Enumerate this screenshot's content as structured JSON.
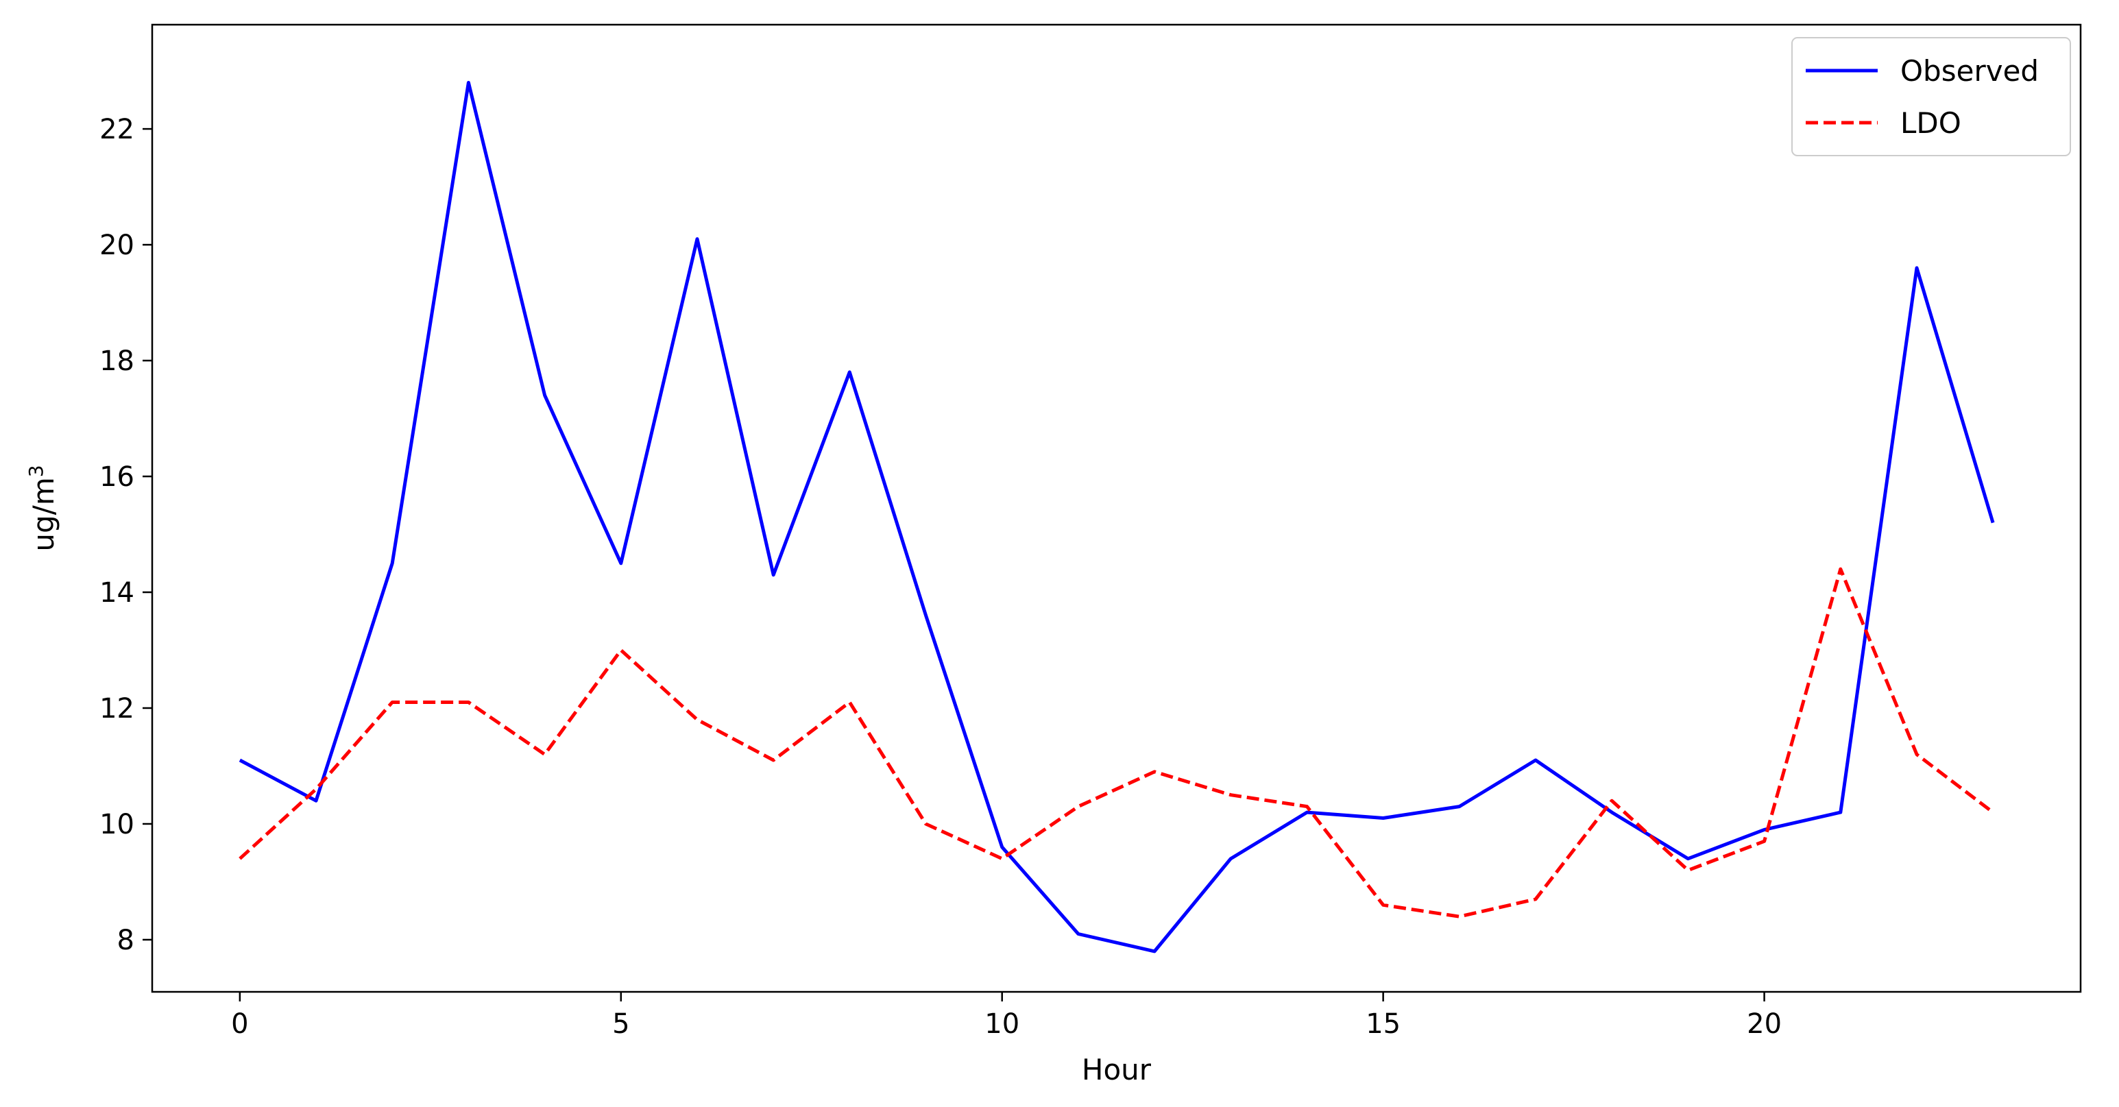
{
  "chart_data": {
    "type": "line",
    "xlabel": "Hour",
    "ylabel_base": "ug/m",
    "ylabel_sup": "3",
    "xlim": [
      -1.15,
      24.15
    ],
    "ylim": [
      7.1,
      23.8
    ],
    "xticks": [
      0,
      5,
      10,
      15,
      20
    ],
    "yticks": [
      8,
      10,
      12,
      14,
      16,
      18,
      20,
      22
    ],
    "grid": false,
    "legend_position": "top-right",
    "x": [
      0,
      1,
      2,
      3,
      4,
      5,
      6,
      7,
      8,
      9,
      10,
      11,
      12,
      13,
      14,
      15,
      16,
      17,
      18,
      19,
      20,
      21,
      22,
      23
    ],
    "series": [
      {
        "name": "Observed",
        "color": "#0000ff",
        "style": "solid",
        "values": [
          11.1,
          10.4,
          14.5,
          22.8,
          17.4,
          14.5,
          20.1,
          14.3,
          17.8,
          13.6,
          9.6,
          8.1,
          7.8,
          9.4,
          10.2,
          10.1,
          10.3,
          11.1,
          10.2,
          9.4,
          9.9,
          10.2,
          19.6,
          15.2
        ]
      },
      {
        "name": "LDO",
        "color": "#ff0000",
        "style": "dashed",
        "values": [
          9.4,
          10.6,
          12.1,
          12.1,
          11.2,
          13.0,
          11.8,
          11.1,
          12.1,
          10.0,
          9.4,
          10.3,
          10.9,
          10.5,
          10.3,
          8.6,
          8.4,
          8.7,
          10.4,
          9.2,
          9.7,
          14.4,
          11.2,
          10.2
        ]
      }
    ]
  }
}
